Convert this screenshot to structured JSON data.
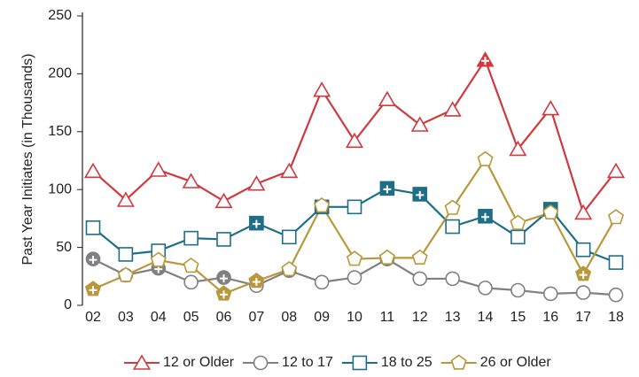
{
  "chart_data": {
    "type": "line",
    "y_label": "Past Year Initiates (in Thousands)",
    "categories": [
      "02",
      "03",
      "04",
      "05",
      "06",
      "07",
      "08",
      "09",
      "10",
      "11",
      "12",
      "13",
      "14",
      "15",
      "16",
      "17",
      "18"
    ],
    "ylim": [
      0,
      250
    ],
    "yticks": [
      0,
      50,
      100,
      150,
      200,
      250
    ],
    "grid": false,
    "legend": "bottom",
    "series": [
      {
        "name": "12 or Older",
        "color": "#d0393f",
        "marker": "triangle",
        "values": [
          116,
          91,
          117,
          107,
          90,
          105,
          116,
          186,
          142,
          178,
          156,
          169,
          212,
          135,
          170,
          80,
          116
        ],
        "filled": [
          false,
          false,
          false,
          false,
          false,
          false,
          false,
          false,
          false,
          false,
          false,
          false,
          true,
          false,
          false,
          false,
          false
        ]
      },
      {
        "name": "12 to 17",
        "color": "#808083",
        "marker": "circle",
        "values": [
          40,
          26,
          32,
          20,
          24,
          17,
          30,
          20,
          24,
          40,
          23,
          23,
          15,
          13,
          10,
          11,
          9
        ],
        "filled": [
          true,
          true,
          true,
          false,
          true,
          false,
          true,
          false,
          false,
          true,
          false,
          false,
          false,
          false,
          false,
          false,
          false
        ]
      },
      {
        "name": "18 to 25",
        "color": "#1f6e88",
        "marker": "square",
        "values": [
          67,
          44,
          47,
          58,
          57,
          71,
          59,
          85,
          85,
          101,
          96,
          68,
          77,
          59,
          83,
          48,
          37
        ],
        "filled": [
          false,
          false,
          false,
          false,
          false,
          true,
          false,
          true,
          false,
          true,
          true,
          false,
          true,
          false,
          true,
          false,
          false
        ]
      },
      {
        "name": "26 or Older",
        "color": "#b8983a",
        "marker": "pentagon",
        "values": [
          14,
          26,
          39,
          34,
          10,
          21,
          31,
          86,
          40,
          41,
          41,
          84,
          126,
          71,
          80,
          27,
          76
        ],
        "filled": [
          true,
          false,
          false,
          false,
          true,
          true,
          false,
          false,
          false,
          false,
          false,
          false,
          false,
          false,
          false,
          true,
          false
        ]
      }
    ]
  }
}
